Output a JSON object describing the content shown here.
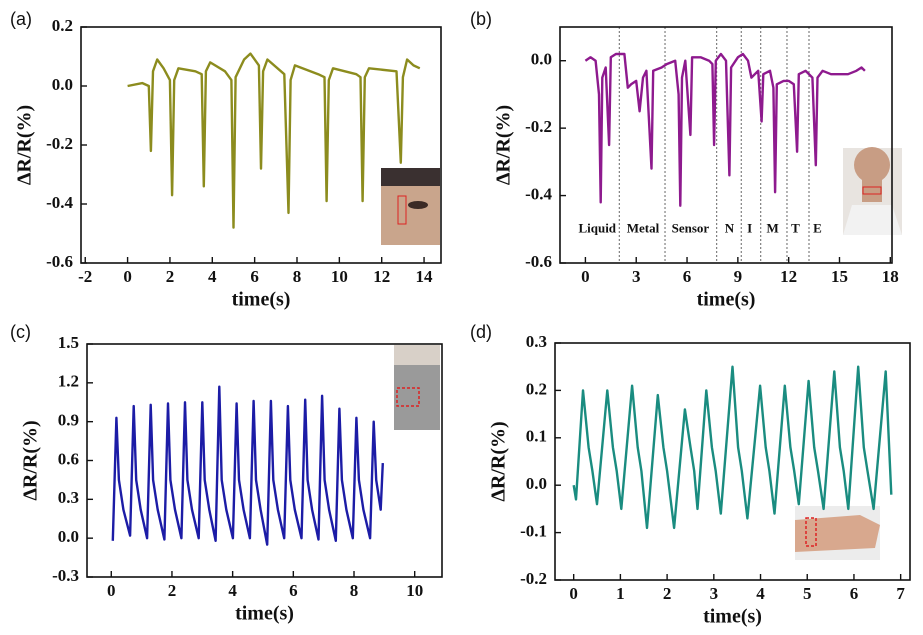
{
  "chart_data": [
    {
      "type": "line",
      "panel_label": "(a)",
      "xlabel": "time(s)",
      "ylabel": "ΔR/R(%)",
      "color": "#8c8c1e",
      "xlim": [
        -2.2,
        14.8
      ],
      "ylim": [
        -0.6,
        0.2
      ],
      "xticks": [
        -2,
        0,
        2,
        4,
        6,
        8,
        10,
        12,
        14
      ],
      "yticks": [
        -0.6,
        -0.4,
        -0.2,
        {
          "value": 0,
          "label": "0.0"
        },
        0.2
      ],
      "x": [
        0,
        0.7,
        1.0,
        1.1,
        1.2,
        1.4,
        1.7,
        2.0,
        2.1,
        2.2,
        2.4,
        3.2,
        3.5,
        3.6,
        3.7,
        3.9,
        4.6,
        4.9,
        5.0,
        5.1,
        5.5,
        5.8,
        6.2,
        6.3,
        6.4,
        6.6,
        7.4,
        7.6,
        7.7,
        7.9,
        9.0,
        9.3,
        9.4,
        9.5,
        9.7,
        10.8,
        11.0,
        11.1,
        11.2,
        11.4,
        12.7,
        12.9,
        13.0,
        13.2,
        13.5,
        13.8
      ],
      "values": [
        0.0,
        0.01,
        0.0,
        -0.22,
        0.05,
        0.09,
        0.06,
        0.02,
        -0.37,
        0.02,
        0.06,
        0.05,
        0.04,
        -0.34,
        0.05,
        0.08,
        0.05,
        0.02,
        -0.48,
        0.03,
        0.09,
        0.11,
        0.07,
        -0.28,
        0.05,
        0.09,
        0.04,
        -0.43,
        0.02,
        0.07,
        0.04,
        0.03,
        -0.39,
        0.02,
        0.06,
        0.04,
        0.03,
        -0.39,
        0.03,
        0.06,
        0.05,
        -0.26,
        0.03,
        0.09,
        0.07,
        0.06
      ]
    },
    {
      "type": "line",
      "panel_label": "(b)",
      "xlabel": "time(s)",
      "ylabel": "ΔR/R(%)",
      "color": "#8e1a8e",
      "xlim": [
        -1.5,
        18.1
      ],
      "ylim": [
        -0.6,
        0.1
      ],
      "xticks": [
        0,
        3,
        6,
        9,
        12,
        15,
        18
      ],
      "yticks": [
        -0.6,
        -0.4,
        -0.2,
        {
          "value": 0,
          "label": "0.0"
        }
      ],
      "dividers": [
        2.0,
        4.7,
        7.75,
        9.2,
        10.35,
        11.9,
        13.2
      ],
      "annotations": [
        {
          "text": "Liquid",
          "x": 0.7,
          "y": -0.5
        },
        {
          "text": "Metal",
          "x": 3.4,
          "y": -0.5
        },
        {
          "text": "Sensor",
          "x": 6.2,
          "y": -0.5
        },
        {
          "text": "N",
          "x": 8.5,
          "y": -0.5
        },
        {
          "text": "I",
          "x": 9.7,
          "y": -0.5
        },
        {
          "text": "M",
          "x": 11.05,
          "y": -0.5
        },
        {
          "text": "T",
          "x": 12.4,
          "y": -0.5
        },
        {
          "text": "E",
          "x": 13.7,
          "y": -0.5
        }
      ],
      "x": [
        0,
        0.3,
        0.6,
        0.8,
        0.9,
        1.0,
        1.2,
        1.4,
        1.5,
        1.8,
        2.3,
        2.5,
        2.7,
        3.0,
        3.2,
        3.4,
        3.6,
        3.9,
        4.0,
        4.5,
        4.8,
        5.3,
        5.5,
        5.6,
        5.7,
        5.9,
        6.2,
        6.3,
        6.8,
        7.3,
        7.5,
        7.6,
        7.7,
        8.0,
        8.3,
        8.5,
        8.6,
        9.0,
        9.3,
        9.6,
        9.8,
        10.2,
        10.4,
        10.5,
        10.9,
        11.1,
        11.2,
        11.3,
        11.7,
        12.0,
        12.3,
        12.5,
        12.6,
        13.0,
        13.4,
        13.6,
        13.7,
        14.0,
        14.5,
        15.0,
        15.5,
        16.0,
        16.3,
        16.5
      ],
      "values": [
        0.0,
        0.01,
        0.0,
        -0.1,
        -0.42,
        -0.05,
        -0.02,
        -0.25,
        0.01,
        0.02,
        0.02,
        -0.08,
        -0.07,
        -0.06,
        -0.15,
        -0.05,
        -0.03,
        -0.32,
        -0.03,
        -0.02,
        -0.01,
        0.0,
        -0.1,
        -0.43,
        -0.05,
        0.0,
        -0.22,
        0.01,
        0.01,
        0.0,
        -0.01,
        -0.25,
        0.0,
        0.02,
        0.0,
        -0.34,
        -0.02,
        0.01,
        0.02,
        0.0,
        -0.05,
        -0.03,
        -0.18,
        -0.04,
        -0.03,
        -0.08,
        -0.39,
        -0.07,
        -0.06,
        -0.06,
        -0.07,
        -0.27,
        -0.04,
        -0.03,
        -0.05,
        -0.31,
        -0.05,
        -0.03,
        -0.04,
        -0.04,
        -0.04,
        -0.03,
        -0.02,
        -0.03
      ]
    },
    {
      "type": "line",
      "panel_label": "(c)",
      "xlabel": "time(s)",
      "ylabel": "ΔR/R(%)",
      "color": "#1c1ca6",
      "xlim": [
        -0.8,
        10.9
      ],
      "ylim": [
        -0.3,
        1.5
      ],
      "xticks": [
        0,
        2,
        4,
        6,
        8,
        10
      ],
      "yticks": [
        -0.3,
        {
          "value": 0,
          "label": "0.0"
        },
        0.3,
        0.6,
        0.9,
        1.2,
        1.5
      ],
      "x": [
        0.05,
        0.17,
        0.25,
        0.4,
        0.62,
        0.74,
        0.82,
        0.97,
        1.18,
        1.3,
        1.38,
        1.53,
        1.75,
        1.87,
        1.95,
        2.1,
        2.31,
        2.43,
        2.51,
        2.66,
        2.88,
        3.0,
        3.08,
        3.23,
        3.44,
        3.56,
        3.64,
        3.79,
        4.01,
        4.13,
        4.21,
        4.36,
        4.57,
        4.69,
        4.77,
        4.92,
        5.14,
        5.26,
        5.34,
        5.49,
        5.7,
        5.82,
        5.9,
        6.05,
        6.27,
        6.39,
        6.47,
        6.62,
        6.83,
        6.95,
        7.03,
        7.18,
        7.4,
        7.52,
        7.6,
        7.75,
        7.96,
        8.08,
        8.16,
        8.31,
        8.53,
        8.65,
        8.73,
        8.88,
        8.95
      ],
      "values": [
        -0.02,
        0.93,
        0.45,
        0.22,
        0.02,
        1.02,
        0.45,
        0.22,
        0.0,
        1.03,
        0.45,
        0.22,
        -0.01,
        1.04,
        0.45,
        0.22,
        0.0,
        1.05,
        0.45,
        0.22,
        0.0,
        1.05,
        0.45,
        0.22,
        -0.02,
        1.17,
        0.45,
        0.22,
        0.0,
        1.04,
        0.45,
        0.22,
        0.0,
        1.06,
        0.45,
        0.22,
        -0.05,
        1.06,
        0.45,
        0.22,
        0.0,
        1.02,
        0.45,
        0.22,
        0.0,
        1.07,
        0.45,
        0.22,
        -0.01,
        1.1,
        0.45,
        0.22,
        -0.02,
        1.0,
        0.45,
        0.22,
        0.0,
        0.93,
        0.45,
        0.22,
        0.0,
        0.9,
        0.45,
        0.22,
        0.58
      ]
    },
    {
      "type": "line",
      "panel_label": "(d)",
      "xlabel": "time(s)",
      "ylabel": "ΔR/R(%)",
      "color": "#1a8c80",
      "xlim": [
        -0.4,
        7.2
      ],
      "ylim": [
        -0.2,
        0.3
      ],
      "xticks": [
        0,
        1,
        2,
        3,
        4,
        5,
        6,
        7
      ],
      "yticks": [
        -0.2,
        -0.1,
        {
          "value": 0,
          "label": "0.0"
        },
        0.1,
        0.2,
        0.3
      ],
      "x": [
        0,
        0.05,
        0.2,
        0.32,
        0.4,
        0.5,
        0.72,
        0.84,
        0.92,
        1.02,
        1.25,
        1.37,
        1.45,
        1.57,
        1.8,
        1.92,
        2.0,
        2.15,
        2.38,
        2.5,
        2.58,
        2.65,
        2.84,
        2.96,
        3.04,
        3.15,
        3.4,
        3.52,
        3.6,
        3.72,
        3.99,
        4.11,
        4.19,
        4.3,
        4.52,
        4.64,
        4.72,
        4.82,
        5.03,
        5.15,
        5.23,
        5.35,
        5.58,
        5.7,
        5.78,
        5.88,
        6.09,
        6.21,
        6.29,
        6.42,
        6.68,
        6.8
      ],
      "values": [
        0.0,
        -0.03,
        0.2,
        0.08,
        0.03,
        -0.04,
        0.2,
        0.08,
        0.03,
        -0.05,
        0.21,
        0.08,
        0.03,
        -0.09,
        0.19,
        0.08,
        0.03,
        -0.09,
        0.16,
        0.08,
        0.03,
        -0.05,
        0.2,
        0.08,
        0.03,
        -0.06,
        0.25,
        0.08,
        0.03,
        -0.07,
        0.21,
        0.08,
        0.03,
        -0.06,
        0.21,
        0.08,
        0.03,
        -0.04,
        0.22,
        0.08,
        0.03,
        -0.05,
        0.24,
        0.08,
        0.03,
        -0.05,
        0.25,
        0.08,
        0.03,
        -0.05,
        0.24,
        -0.02
      ]
    }
  ]
}
